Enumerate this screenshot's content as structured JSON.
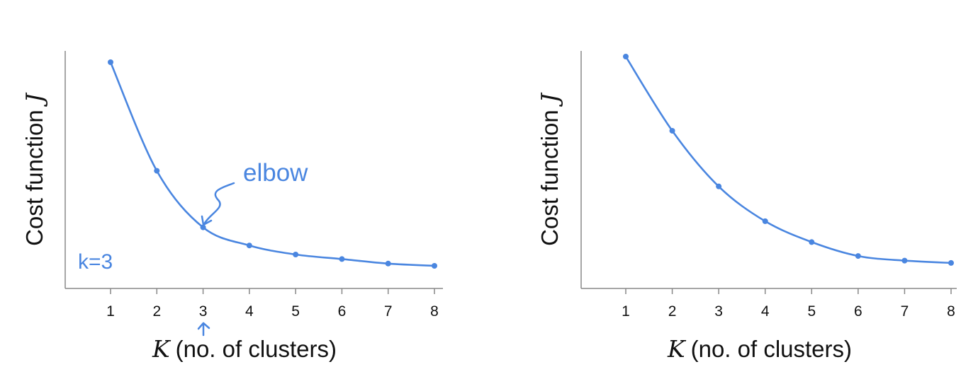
{
  "chart_data": [
    {
      "type": "line",
      "ylabel_text": "Cost function",
      "ylabel_var": "J",
      "xlabel_var": "K",
      "xlabel_text": "(no. of clusters)",
      "categories": [
        "1",
        "2",
        "3",
        "4",
        "5",
        "6",
        "7",
        "8"
      ],
      "x": [
        1,
        2,
        3,
        4,
        5,
        6,
        7,
        8
      ],
      "values": [
        10.0,
        5.2,
        2.7,
        1.9,
        1.5,
        1.3,
        1.1,
        1.0
      ],
      "ylim": [
        0,
        10.5
      ],
      "annotation_elbow": "elbow",
      "annotation_k": "k=3",
      "color": "#4a86e0"
    },
    {
      "type": "line",
      "ylabel_text": "Cost function",
      "ylabel_var": "J",
      "xlabel_var": "K",
      "xlabel_text": "(no. of clusters)",
      "categories": [
        "1",
        "2",
        "3",
        "4",
        "5",
        "6",
        "7",
        "8"
      ],
      "x": [
        1,
        2,
        3,
        4,
        5,
        6,
        7,
        8
      ],
      "values": [
        10.0,
        6.8,
        4.4,
        2.9,
        2.0,
        1.4,
        1.2,
        1.1
      ],
      "ylim": [
        0,
        10.5
      ],
      "color": "#4a86e0"
    }
  ]
}
